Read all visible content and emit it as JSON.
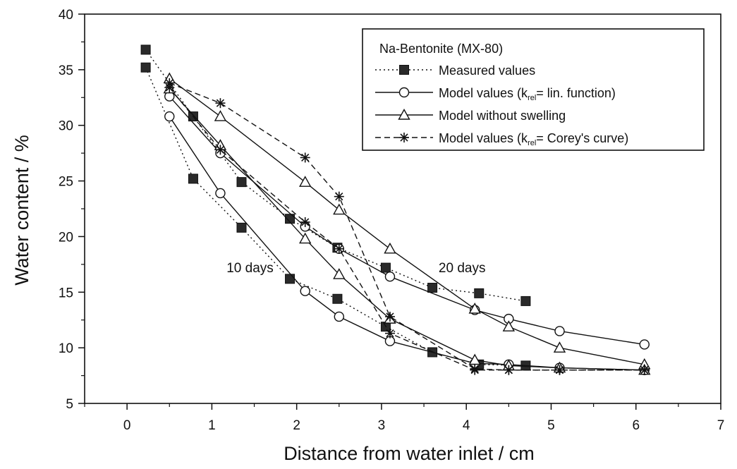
{
  "chart_data": {
    "type": "line",
    "title": "",
    "xlabel": "Distance from water inlet / cm",
    "ylabel": "Water content / %",
    "xlim": [
      -0.5,
      7
    ],
    "ylim": [
      5,
      40
    ],
    "xticks": [
      0,
      1,
      2,
      3,
      4,
      5,
      6,
      7
    ],
    "yticks": [
      5,
      10,
      15,
      20,
      25,
      30,
      35,
      40
    ],
    "grid": false,
    "legend_position": "top-right",
    "legend": {
      "title": "Na-Bentonite (MX-80)",
      "entries": [
        {
          "pre": "Measured values",
          "sub": "",
          "post": ""
        },
        {
          "pre": "Model values (k",
          "sub": "rel",
          "post": "= lin. function)"
        },
        {
          "pre": "Model without swelling",
          "sub": "",
          "post": ""
        },
        {
          "pre": "Model values (k",
          "sub": "rel",
          "post": "= Corey's curve)"
        }
      ]
    },
    "annotations": [
      {
        "text": "10 days",
        "x": 1.45,
        "y": 16.8
      },
      {
        "text": "20 days",
        "x": 3.95,
        "y": 16.8
      }
    ],
    "series": [
      {
        "marker": "filled-square",
        "line": "dotted",
        "name": "Measured values",
        "curves": [
          [
            [
              0.22,
              36.8
            ],
            [
              0.78,
              30.8
            ],
            [
              1.35,
              24.9
            ],
            [
              1.92,
              21.6
            ],
            [
              2.48,
              19.0
            ],
            [
              3.05,
              17.2
            ],
            [
              3.6,
              15.4
            ],
            [
              4.15,
              14.9
            ],
            [
              4.7,
              14.2
            ]
          ],
          [
            [
              0.22,
              35.2
            ],
            [
              0.78,
              25.2
            ],
            [
              1.35,
              20.8
            ],
            [
              1.92,
              16.2
            ],
            [
              2.48,
              14.4
            ],
            [
              3.05,
              11.9
            ],
            [
              3.6,
              9.6
            ],
            [
              4.15,
              8.5
            ],
            [
              4.7,
              8.4
            ]
          ]
        ]
      },
      {
        "marker": "open-circle",
        "line": "solid",
        "name": "Model values (krel= lin. function)",
        "curves": [
          [
            [
              0.5,
              32.6
            ],
            [
              1.1,
              27.5
            ],
            [
              2.1,
              20.9
            ],
            [
              2.5,
              18.9
            ],
            [
              3.1,
              16.4
            ],
            [
              4.1,
              13.4
            ],
            [
              4.5,
              12.6
            ],
            [
              5.1,
              11.5
            ],
            [
              6.1,
              10.3
            ]
          ],
          [
            [
              0.5,
              30.8
            ],
            [
              1.1,
              23.9
            ],
            [
              2.1,
              15.1
            ],
            [
              2.5,
              12.8
            ],
            [
              3.1,
              10.6
            ],
            [
              4.1,
              8.6
            ],
            [
              4.5,
              8.5
            ],
            [
              5.1,
              8.2
            ],
            [
              6.1,
              8.0
            ]
          ]
        ]
      },
      {
        "marker": "open-triangle",
        "line": "solid",
        "name": "Model without swelling",
        "curves": [
          [
            [
              0.5,
              34.2
            ],
            [
              1.1,
              30.8
            ],
            [
              2.1,
              24.9
            ],
            [
              2.5,
              22.4
            ],
            [
              3.1,
              18.9
            ],
            [
              4.1,
              13.5
            ],
            [
              4.5,
              11.9
            ],
            [
              5.1,
              10.0
            ],
            [
              6.1,
              8.5
            ]
          ],
          [
            [
              0.5,
              33.3
            ],
            [
              1.1,
              28.2
            ],
            [
              2.1,
              19.8
            ],
            [
              2.5,
              16.6
            ],
            [
              3.1,
              12.6
            ],
            [
              4.1,
              8.9
            ],
            [
              4.5,
              8.4
            ],
            [
              5.1,
              8.2
            ],
            [
              6.1,
              8.0
            ]
          ]
        ]
      },
      {
        "marker": "asterisk",
        "line": "dashed",
        "name": "Model values (krel= Corey's curve)",
        "curves": [
          [
            [
              0.5,
              33.8
            ],
            [
              1.1,
              32.0
            ],
            [
              2.1,
              27.1
            ],
            [
              2.5,
              23.6
            ],
            [
              3.1,
              12.8
            ],
            [
              4.1,
              8.1
            ],
            [
              4.5,
              8.0
            ],
            [
              5.1,
              8.0
            ],
            [
              6.1,
              8.0
            ]
          ],
          [
            [
              0.5,
              33.4
            ],
            [
              1.1,
              27.8
            ],
            [
              2.1,
              21.3
            ],
            [
              2.5,
              18.9
            ],
            [
              3.1,
              11.3
            ],
            [
              4.1,
              8.0
            ],
            [
              4.5,
              8.0
            ],
            [
              5.1,
              8.0
            ],
            [
              6.1,
              8.0
            ]
          ]
        ]
      }
    ]
  }
}
